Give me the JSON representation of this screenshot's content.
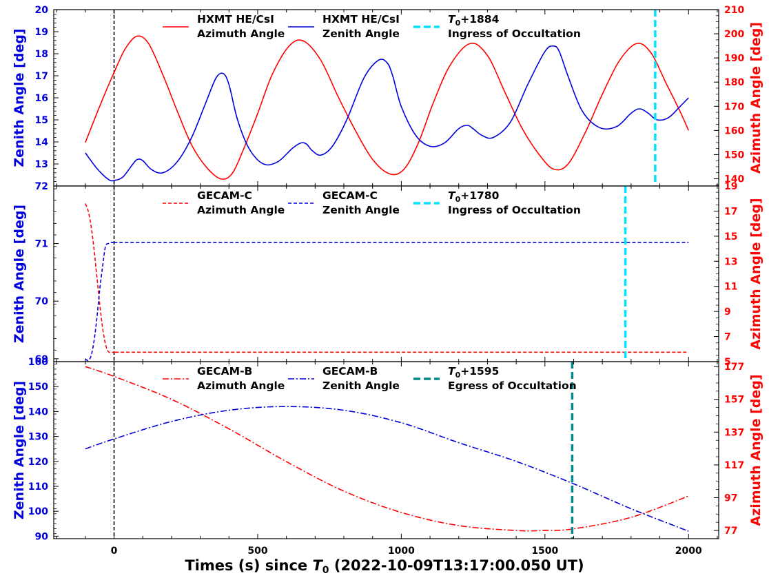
{
  "figure": {
    "xlabel_prefix": "Times (s) since ",
    "xlabel_t0": "T",
    "xlabel_sub": "0",
    "xlabel_suffix": " (2022-10-09T13:17:00.050 UT)"
  },
  "colors": {
    "azimuth": "#ff0000",
    "zenith": "#0000dd",
    "occultation_ingress": "#00e5ff",
    "occultation_egress": "#008b8b",
    "t0_marker": "#000000"
  },
  "chart_data": [
    {
      "type": "line",
      "panel": "top",
      "xlim": [
        -210,
        2105
      ],
      "ylim_left": [
        12,
        20
      ],
      "ylim_right": [
        137,
        210
      ],
      "ylabel_left": "Zenith Angle [deg]",
      "ylabel_right": "Azimuth Angle [deg]",
      "yticks_left": [
        13,
        14,
        15,
        16,
        17,
        18,
        19,
        20
      ],
      "yticks_right": [
        140,
        150,
        160,
        170,
        180,
        190,
        200,
        210
      ],
      "legend_placement": "top-center",
      "series": [
        {
          "name": "HXMT HE/CsI Azimuth Angle",
          "legend_line1": "HXMT HE/CsI",
          "legend_line2": "Azimuth Angle",
          "axis": "right",
          "style": "solid",
          "x": [
            -100,
            -50,
            0,
            40,
            80,
            120,
            170,
            220,
            270,
            320,
            370,
            410,
            450,
            500,
            550,
            610,
            660,
            720,
            780,
            840,
            900,
            960,
            1010,
            1060,
            1110,
            1170,
            1240,
            1300,
            1360,
            1420,
            1480,
            1530,
            1580,
            1640,
            1700,
            1760,
            1820,
            1870,
            1920,
            1970,
            2000
          ],
          "values": [
            155,
            170,
            184,
            194,
            199,
            196,
            183,
            168,
            154,
            145,
            140,
            142,
            152,
            167,
            183,
            195,
            197,
            189,
            174,
            160,
            148,
            142,
            144,
            155,
            171,
            187,
            196,
            191,
            176,
            161,
            150,
            144,
            146,
            159,
            175,
            189,
            196,
            192,
            180,
            168,
            160
          ]
        },
        {
          "name": "HXMT HE/CsI Zenith Angle",
          "legend_line1": "HXMT HE/CsI",
          "legend_line2": "Zenith Angle",
          "axis": "left",
          "style": "solid",
          "x": [
            -100,
            -60,
            -20,
            0,
            30,
            60,
            80,
            100,
            130,
            170,
            220,
            270,
            320,
            355,
            380,
            400,
            430,
            470,
            520,
            570,
            620,
            650,
            670,
            690,
            720,
            760,
            810,
            870,
            920,
            950,
            970,
            1000,
            1050,
            1100,
            1150,
            1200,
            1230,
            1250,
            1280,
            1320,
            1380,
            1440,
            1500,
            1530,
            1550,
            1580,
            1630,
            1690,
            1750,
            1800,
            1830,
            1860,
            1890,
            1930,
            1970,
            2000
          ],
          "values": [
            13.5,
            12.8,
            12.3,
            12.25,
            12.4,
            12.9,
            13.2,
            13.15,
            12.75,
            12.6,
            13.1,
            14.2,
            15.8,
            16.9,
            17.1,
            16.6,
            15.0,
            13.7,
            13.0,
            13.1,
            13.7,
            13.95,
            13.9,
            13.6,
            13.4,
            13.8,
            15.0,
            16.9,
            17.7,
            17.6,
            17.0,
            15.6,
            14.3,
            13.8,
            13.95,
            14.6,
            14.75,
            14.6,
            14.3,
            14.2,
            14.9,
            16.6,
            18.1,
            18.35,
            18.1,
            17.0,
            15.4,
            14.65,
            14.7,
            15.3,
            15.5,
            15.3,
            15.0,
            15.1,
            15.6,
            16.0
          ]
        },
        {
          "name": "T0+1884 Ingress of Occultation",
          "legend_line1_prefix": "T",
          "legend_line1_sub": "0",
          "legend_line1_suffix": "+1884",
          "legend_line2": "Ingress of Occultation",
          "style": "dashed-vertical",
          "x": [
            1884
          ]
        }
      ]
    },
    {
      "type": "line",
      "panel": "middle",
      "xlim": [
        -210,
        2105
      ],
      "ylim_left": [
        68.95,
        72
      ],
      "ylim_right": [
        5,
        19
      ],
      "ylabel_left": "Zenith Angle [deg]",
      "ylabel_right": "Azimuth Angle [deg]",
      "yticks_left": [
        69,
        70,
        71,
        72
      ],
      "yticks_right": [
        5,
        7,
        9,
        11,
        13,
        15,
        17,
        19
      ],
      "legend_placement": "top-center",
      "series": [
        {
          "name": "GECAM-C Azimuth Angle",
          "legend_line1": "GECAM-C",
          "legend_line2": "Azimuth Angle",
          "axis": "right",
          "style": "dashed",
          "x": [
            -100,
            -90,
            -80,
            -70,
            -60,
            -50,
            -40,
            -30,
            -20,
            -10,
            0,
            50,
            500,
            1000,
            1500,
            2000
          ],
          "values": [
            17.6,
            17.0,
            15.8,
            14.0,
            11.8,
            9.6,
            7.7,
            6.4,
            5.8,
            5.75,
            5.75,
            5.75,
            5.75,
            5.75,
            5.75,
            5.75
          ]
        },
        {
          "name": "GECAM-C Zenith Angle",
          "legend_line1": "GECAM-C",
          "legend_line2": "Zenith Angle",
          "axis": "left",
          "style": "dashed",
          "x": [
            -100,
            -90,
            -80,
            -70,
            -60,
            -50,
            -40,
            -30,
            -20,
            -10,
            0,
            50,
            500,
            1000,
            1500,
            2000
          ],
          "values": [
            69.0,
            68.97,
            69.05,
            69.3,
            69.7,
            70.2,
            70.6,
            70.95,
            71.0,
            71.02,
            71.02,
            71.02,
            71.02,
            71.02,
            71.02,
            71.02
          ]
        },
        {
          "name": "T0+1780 Ingress of Occultation",
          "legend_line1_prefix": "T",
          "legend_line1_sub": "0",
          "legend_line1_suffix": "+1780",
          "legend_line2": "Ingress of Occultation",
          "style": "dashed-vertical",
          "x": [
            1780
          ]
        }
      ]
    },
    {
      "type": "line",
      "panel": "bottom",
      "xlim": [
        -210,
        2105
      ],
      "ylim_left": [
        89,
        160
      ],
      "ylim_right": [
        72,
        180
      ],
      "ylabel_left": "Zenith Angle [deg]",
      "ylabel_right": "Azimuth Angle [deg]",
      "yticks_left": [
        90,
        100,
        110,
        120,
        130,
        140,
        150,
        160
      ],
      "yticks_right": [
        77,
        97,
        117,
        137,
        157,
        177
      ],
      "xticks": [
        0,
        500,
        1000,
        1500,
        2000
      ],
      "legend_placement": "top-center",
      "series": [
        {
          "name": "GECAM-B Azimuth Angle",
          "legend_line1": "GECAM-B",
          "legend_line2": "Azimuth Angle",
          "axis": "right",
          "style": "dashdot",
          "x": [
            -100,
            0,
            200,
            400,
            600,
            800,
            1000,
            1200,
            1400,
            1500,
            1600,
            1800,
            2000
          ],
          "values": [
            177,
            171,
            157,
            139,
            119,
            101,
            88,
            80,
            77,
            77,
            78,
            85,
            98
          ]
        },
        {
          "name": "GECAM-B Zenith Angle",
          "legend_line1": "GECAM-B",
          "legend_line2": "Zenith Angle",
          "axis": "left",
          "style": "dashdot",
          "x": [
            -100,
            0,
            200,
            400,
            600,
            800,
            1000,
            1200,
            1400,
            1600,
            1800,
            2000
          ],
          "values": [
            125,
            129,
            136,
            140.5,
            142,
            140.5,
            135.5,
            127.5,
            120,
            111,
            101,
            92
          ]
        },
        {
          "name": "T0+1595 Egress of Occultation",
          "legend_line1_prefix": "T",
          "legend_line1_sub": "0",
          "legend_line1_suffix": "+1595",
          "legend_line2": "Egress of Occultation",
          "style": "dashed-vertical",
          "x": [
            1595
          ]
        }
      ]
    }
  ]
}
